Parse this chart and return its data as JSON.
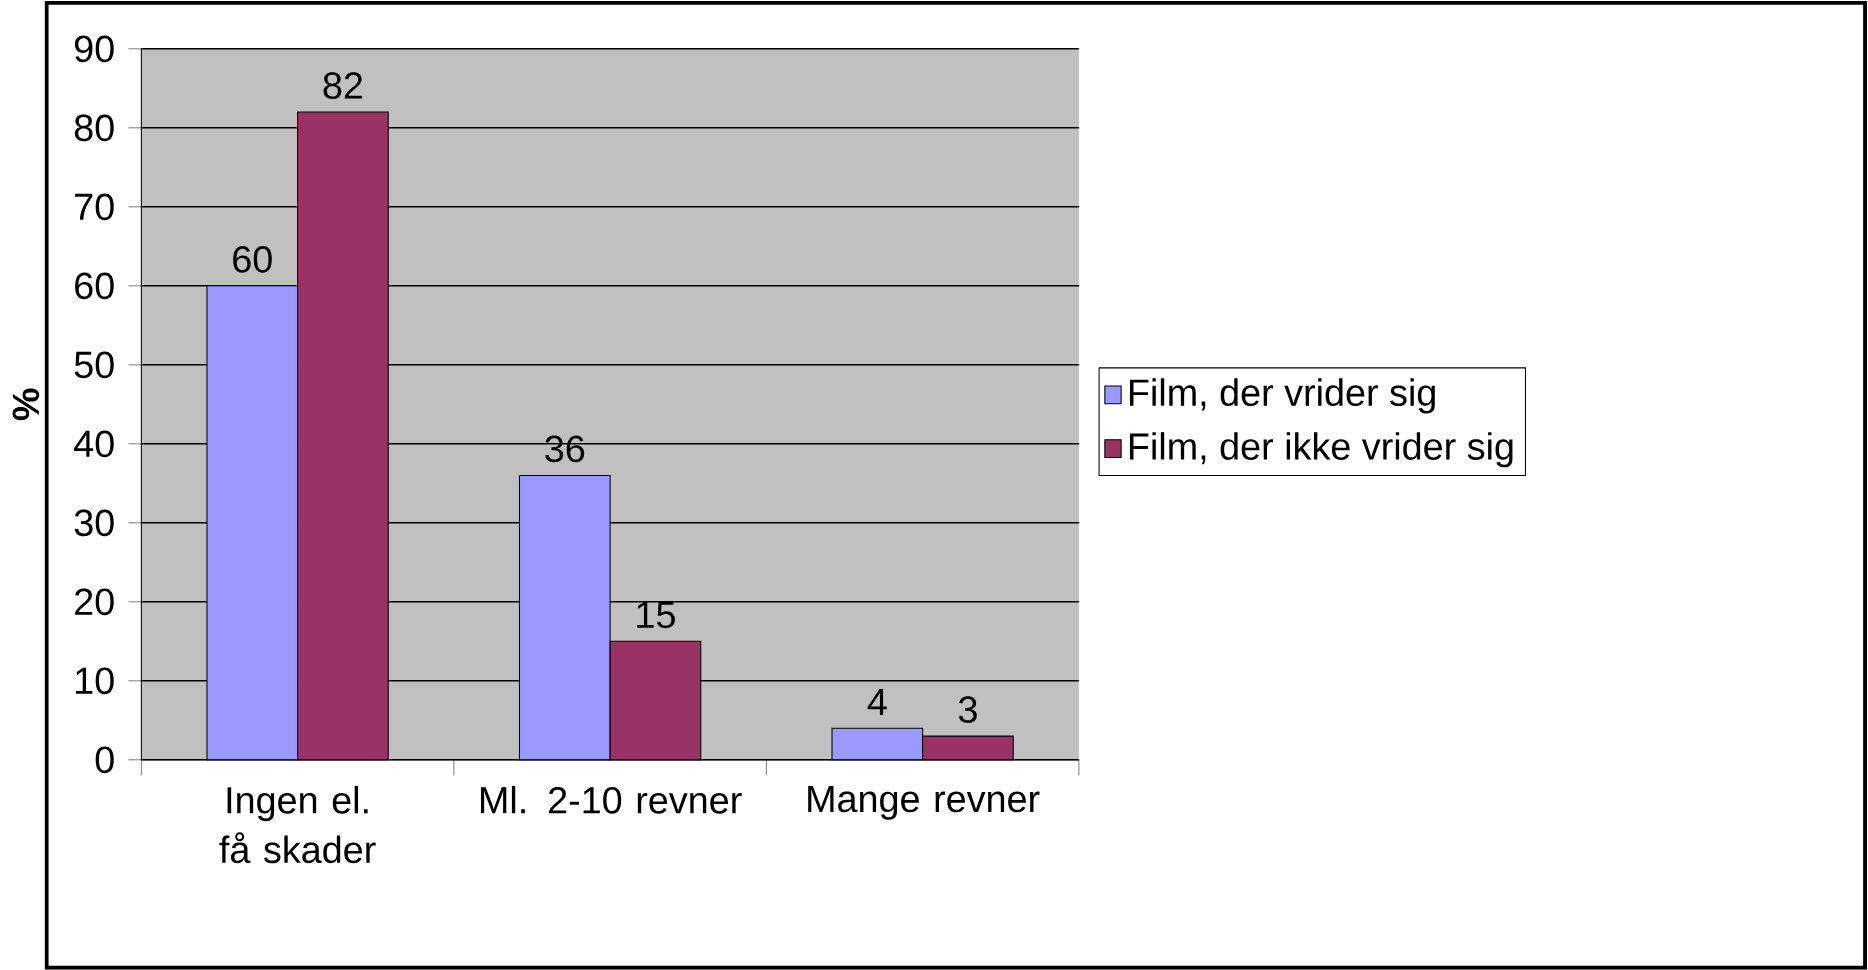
{
  "chart_data": {
    "type": "bar",
    "ylabel": "%",
    "categories": [
      "Ingen el. få skader",
      "Ml. 2-10 revner",
      "Mange revner"
    ],
    "series": [
      {
        "name": "Film, der vrider sig",
        "color": "#9999ff",
        "values": [
          60,
          36,
          4
        ]
      },
      {
        "name": "Film, der ikke vrider sig",
        "color": "#993366",
        "values": [
          82,
          15,
          3
        ]
      }
    ],
    "ylim": [
      0,
      90
    ],
    "yticks": [
      0,
      10,
      20,
      30,
      40,
      50,
      60,
      70,
      80,
      90
    ],
    "grid": "y",
    "legend": "right",
    "data_labels": true
  }
}
